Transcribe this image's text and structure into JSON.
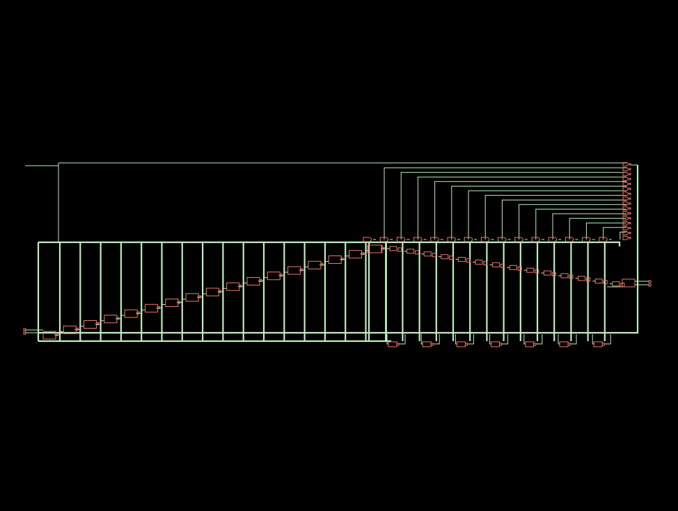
{
  "canvas": {
    "background": "#000000"
  },
  "colors": {
    "wire": "#bfeebf",
    "cell": "#f07a6a"
  },
  "schematic": {
    "register_chain_count": 17,
    "output_gate_count": 15,
    "feedback_cell_count": 7,
    "top_stack_gate_count": 16
  }
}
